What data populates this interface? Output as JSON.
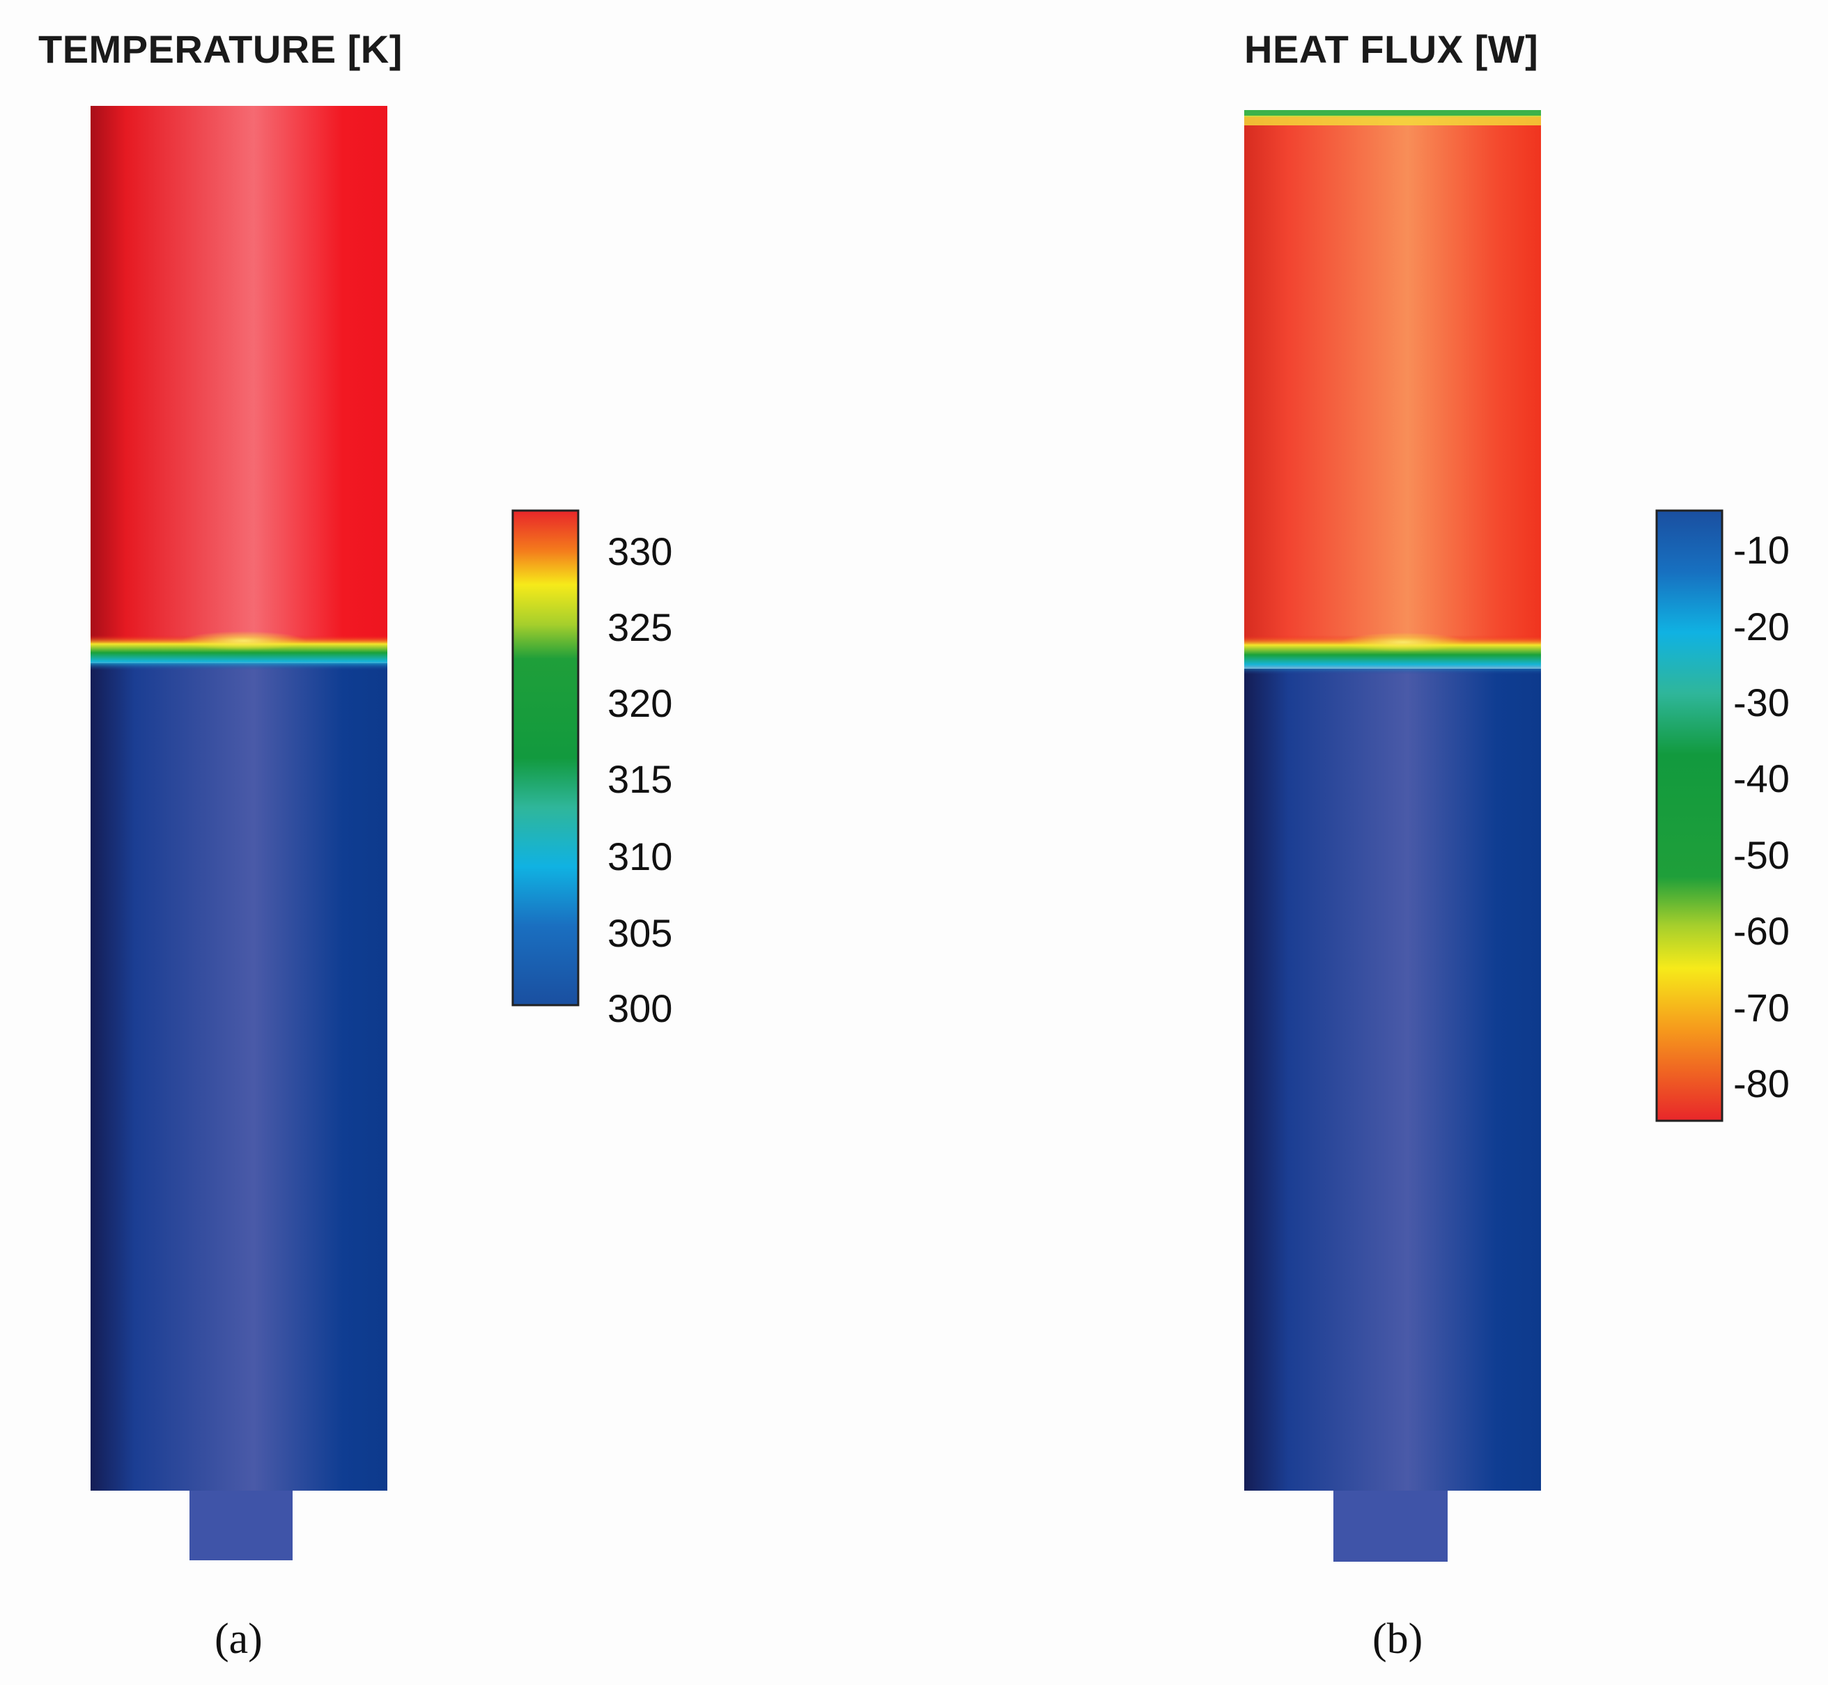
{
  "panels": [
    {
      "id": "a",
      "title": "TEMPERATURE [K]",
      "caption": "(a)",
      "colorbar": {
        "ticks": [
          "330",
          "325",
          "320",
          "315",
          "310",
          "305",
          "300"
        ],
        "top_color": "#e8262a",
        "bottom_color": "#1a4fa0"
      }
    },
    {
      "id": "b",
      "title": "HEAT FLUX [W]",
      "caption": "(b)",
      "colorbar": {
        "ticks": [
          "-10",
          "-20",
          "-30",
          "-40",
          "-50",
          "-60",
          "-70",
          "-80"
        ],
        "top_color": "#1a4fa0",
        "bottom_color": "#e8262a"
      }
    }
  ],
  "colors": {
    "hot": "#ef1b1b",
    "cold": "#1f49a0",
    "interface_yellow": "#f4e52a",
    "interface_green": "#1aa23a",
    "interface_cyan": "#16b4d8"
  }
}
